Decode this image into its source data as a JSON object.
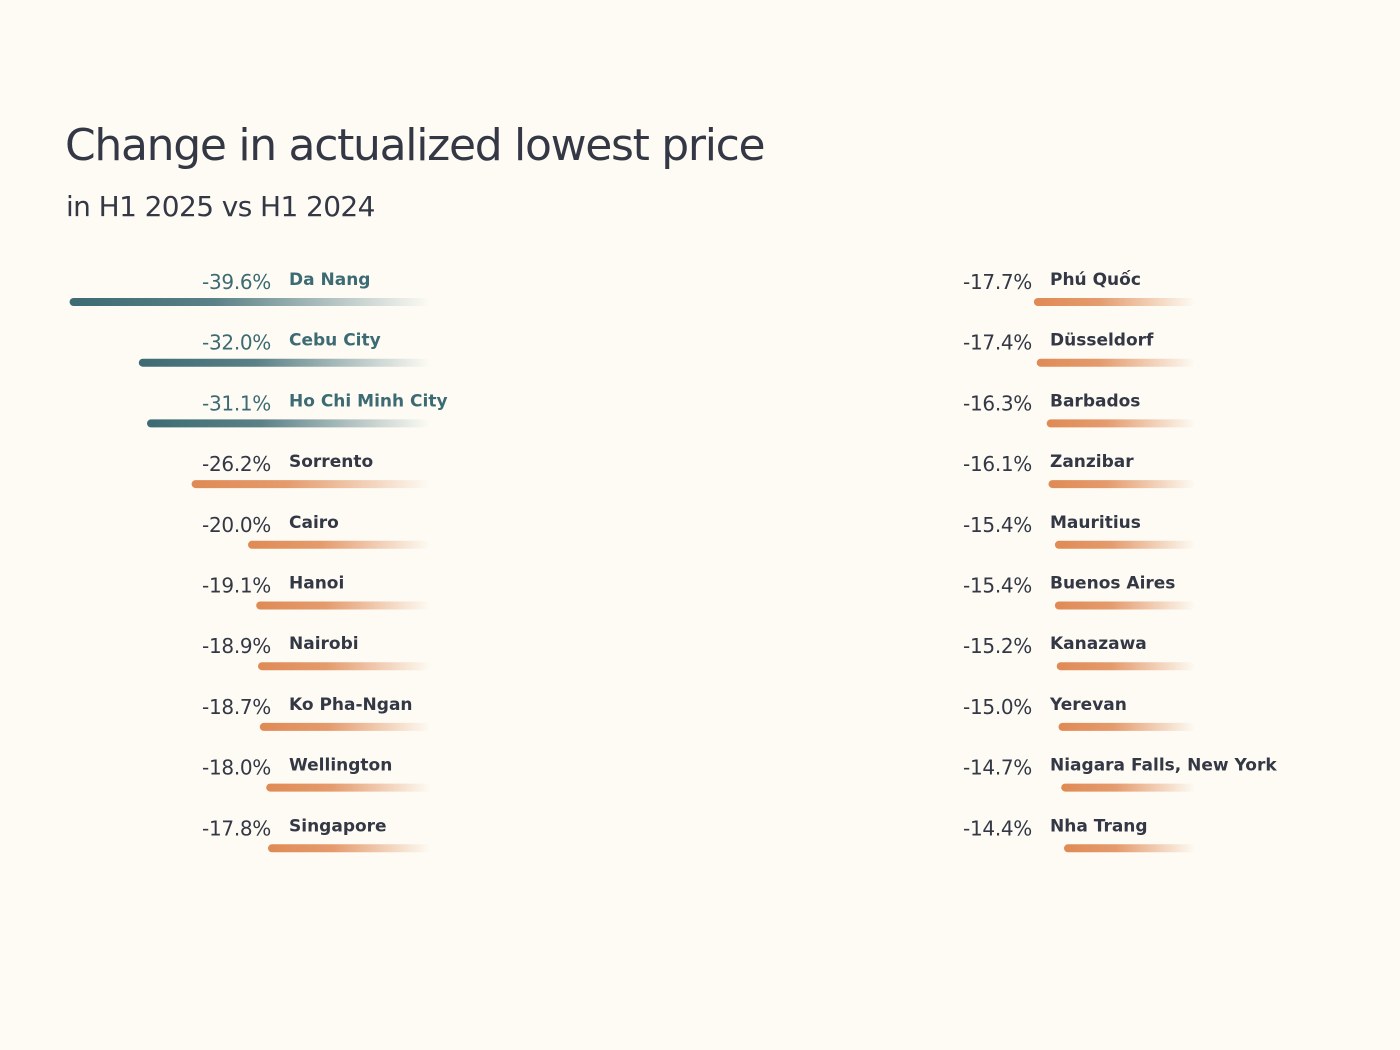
{
  "chart_data": {
    "type": "bar",
    "title": "Change in actualized lowest price",
    "subtitle": "in H1 2025 vs H1 2024",
    "xlabel": "",
    "ylabel": "",
    "value_format": "percent",
    "xlim": [
      -40,
      0
    ],
    "grid": false,
    "legend": "none",
    "colors": {
      "highlight": "#3d6b73",
      "normal": "#e08a55",
      "label_dark": "#343845"
    },
    "groups": [
      {
        "categories": [
          "Da Nang",
          "Cebu City",
          "Ho Chi Minh City",
          "Sorrento",
          "Cairo",
          "Hanoi",
          "Nairobi",
          "Ko Pha-Ngan",
          "Wellington",
          "Singapore"
        ],
        "values": [
          -39.6,
          -32.0,
          -31.1,
          -26.2,
          -20.0,
          -19.1,
          -18.9,
          -18.7,
          -18.0,
          -17.8
        ],
        "labels": [
          "-39.6%",
          "-32.0%",
          "-31.1%",
          "-26.2%",
          "-20.0%",
          "-19.1%",
          "-18.9%",
          "-18.7%",
          "-18.0%",
          "-17.8%"
        ],
        "highlighted": [
          true,
          true,
          true,
          false,
          false,
          false,
          false,
          false,
          false,
          false
        ]
      },
      {
        "categories": [
          "Phú Quốc",
          "Düsseldorf",
          "Barbados",
          "Zanzibar",
          "Mauritius",
          "Buenos Aires",
          "Kanazawa",
          "Yerevan",
          "Niagara Falls, New York",
          "Nha Trang"
        ],
        "values": [
          -17.7,
          -17.4,
          -16.3,
          -16.1,
          -15.4,
          -15.4,
          -15.2,
          -15.0,
          -14.7,
          -14.4
        ],
        "labels": [
          "-17.7%",
          "-17.4%",
          "-16.3%",
          "-16.1%",
          "-15.4%",
          "-15.4%",
          "-15.2%",
          "-15.0%",
          "-14.7%",
          "-14.4%"
        ],
        "highlighted": [
          false,
          false,
          false,
          false,
          false,
          false,
          false,
          false,
          false,
          false
        ]
      }
    ]
  }
}
